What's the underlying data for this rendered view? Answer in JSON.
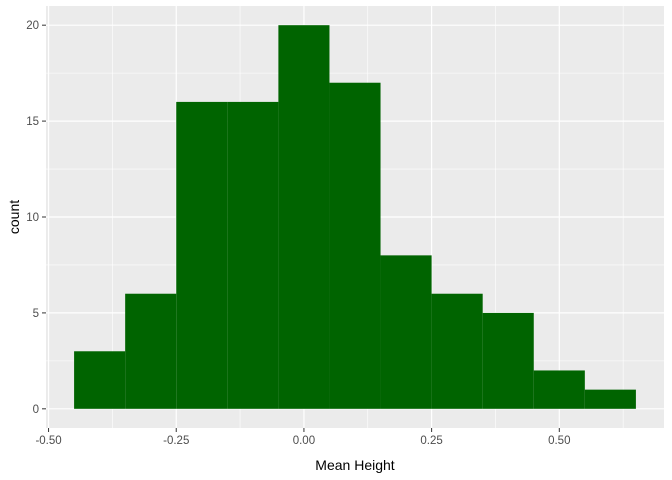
{
  "chart_data": {
    "type": "bar",
    "subtype": "histogram",
    "title": "",
    "xlabel": "Mean Height",
    "ylabel": "count",
    "bins": [
      {
        "x0": -0.45,
        "x1": -0.35,
        "count": 3
      },
      {
        "x0": -0.35,
        "x1": -0.25,
        "count": 6
      },
      {
        "x0": -0.25,
        "x1": -0.15,
        "count": 16
      },
      {
        "x0": -0.15,
        "x1": -0.05,
        "count": 16
      },
      {
        "x0": -0.05,
        "x1": 0.05,
        "count": 20
      },
      {
        "x0": 0.05,
        "x1": 0.15,
        "count": 17
      },
      {
        "x0": 0.15,
        "x1": 0.25,
        "count": 8
      },
      {
        "x0": 0.25,
        "x1": 0.35,
        "count": 6
      },
      {
        "x0": 0.35,
        "x1": 0.45,
        "count": 5
      },
      {
        "x0": 0.45,
        "x1": 0.55,
        "count": 2
      },
      {
        "x0": 0.55,
        "x1": 0.65,
        "count": 1
      }
    ],
    "xlim": [
      -0.505,
      0.705
    ],
    "ylim": [
      -1,
      21
    ],
    "x_ticks": [
      -0.5,
      -0.25,
      0.0,
      0.25,
      0.5
    ],
    "x_tick_labels": [
      "-0.50",
      "-0.25",
      "0.00",
      "0.25",
      "0.50"
    ],
    "y_ticks": [
      0,
      5,
      10,
      15,
      20
    ],
    "y_tick_labels": [
      "0",
      "5",
      "10",
      "15",
      "20"
    ],
    "grid": true,
    "bar_color": "#006400",
    "panel_background": "#ebebeb",
    "grid_color": "#ffffff"
  }
}
